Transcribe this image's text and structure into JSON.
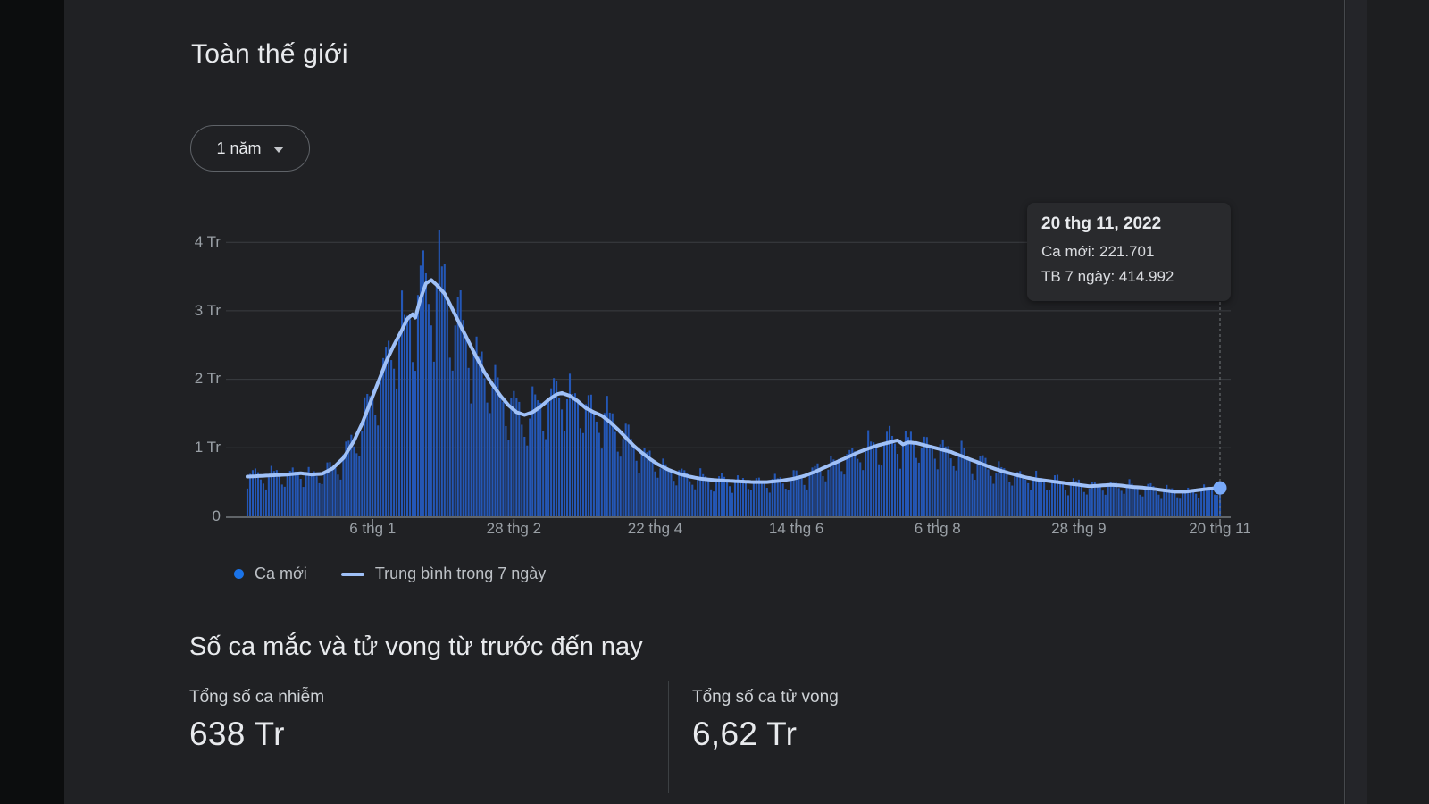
{
  "panel": {
    "title": "Toàn thế giới",
    "range_chip": {
      "label": "1 năm"
    },
    "tooltip": {
      "date": "20 thg 11, 2022",
      "rows": [
        "Ca mới: 221.701",
        "TB 7 ngày: 414.992"
      ]
    },
    "legend": {
      "bars_label": "Ca mới",
      "line_label": "Trung bình trong 7 ngày"
    },
    "section": {
      "heading": "Số ca mắc và tử vong từ trước đến nay",
      "stats": [
        {
          "label": "Tổng số ca nhiễm",
          "value": "638 Tr"
        },
        {
          "label": "Tổng số ca tử vong",
          "value": "6,62 Tr"
        }
      ]
    }
  },
  "chart_data": {
    "type": "bar+line",
    "description": "Daily new COVID-19 cases worldwide (bars) with 7-day average (line), 1-year window ending 20 Nov 2022. Values in Tr (millions).",
    "unit": "Tr",
    "y_axis": {
      "tick_labels": [
        "0",
        "1 Tr",
        "2 Tr",
        "3 Tr",
        "4 Tr"
      ],
      "min": 0,
      "max_gridline": 4,
      "grid": true
    },
    "x_axis": {
      "total_days": 365,
      "tick_days": [
        47,
        100,
        153,
        206,
        259,
        312,
        365
      ],
      "tick_labels": [
        "6 thg 1",
        "28 thg 2",
        "22 thg 4",
        "14 thg 6",
        "6 thg 8",
        "28 thg 9",
        "20 thg 11"
      ]
    },
    "series": [
      {
        "name": "Ca mới",
        "type": "bar",
        "color": "#2457b6",
        "model": {
          "weekly_pattern": [
            0.7,
            1.0,
            1.17,
            1.12,
            1.07,
            0.97,
            0.8
          ],
          "jitter": [
            [
              0.05,
              2.3
            ],
            [
              0.04,
              0.71
            ]
          ],
          "min_value": 0.05
        }
      },
      {
        "name": "Trung bình trong 7 ngày",
        "type": "line",
        "color": "#9fc0f7",
        "points": [
          [
            0,
            0.58
          ],
          [
            5,
            0.59
          ],
          [
            10,
            0.6
          ],
          [
            15,
            0.61
          ],
          [
            20,
            0.63
          ],
          [
            24,
            0.61
          ],
          [
            28,
            0.62
          ],
          [
            32,
            0.7
          ],
          [
            36,
            0.85
          ],
          [
            40,
            1.1
          ],
          [
            43,
            1.35
          ],
          [
            46,
            1.65
          ],
          [
            49,
            1.95
          ],
          [
            52,
            2.25
          ],
          [
            55,
            2.5
          ],
          [
            58,
            2.72
          ],
          [
            60,
            2.88
          ],
          [
            62,
            2.95
          ],
          [
            63,
            2.9
          ],
          [
            65,
            3.18
          ],
          [
            67,
            3.4
          ],
          [
            69,
            3.45
          ],
          [
            71,
            3.38
          ],
          [
            74,
            3.25
          ],
          [
            77,
            3.02
          ],
          [
            80,
            2.78
          ],
          [
            83,
            2.55
          ],
          [
            86,
            2.32
          ],
          [
            89,
            2.1
          ],
          [
            92,
            1.92
          ],
          [
            95,
            1.76
          ],
          [
            98,
            1.62
          ],
          [
            101,
            1.52
          ],
          [
            104,
            1.48
          ],
          [
            107,
            1.52
          ],
          [
            110,
            1.6
          ],
          [
            113,
            1.7
          ],
          [
            116,
            1.78
          ],
          [
            118,
            1.8
          ],
          [
            121,
            1.76
          ],
          [
            124,
            1.68
          ],
          [
            127,
            1.58
          ],
          [
            130,
            1.52
          ],
          [
            133,
            1.47
          ],
          [
            136,
            1.38
          ],
          [
            139,
            1.27
          ],
          [
            142,
            1.15
          ],
          [
            145,
            1.03
          ],
          [
            148,
            0.93
          ],
          [
            151,
            0.84
          ],
          [
            154,
            0.76
          ],
          [
            158,
            0.68
          ],
          [
            162,
            0.62
          ],
          [
            166,
            0.58
          ],
          [
            170,
            0.55
          ],
          [
            175,
            0.53
          ],
          [
            180,
            0.52
          ],
          [
            185,
            0.51
          ],
          [
            190,
            0.5
          ],
          [
            195,
            0.5
          ],
          [
            200,
            0.52
          ],
          [
            205,
            0.55
          ],
          [
            209,
            0.59
          ],
          [
            213,
            0.65
          ],
          [
            217,
            0.72
          ],
          [
            221,
            0.79
          ],
          [
            225,
            0.86
          ],
          [
            229,
            0.93
          ],
          [
            233,
            0.99
          ],
          [
            237,
            1.04
          ],
          [
            241,
            1.08
          ],
          [
            244,
            1.11
          ],
          [
            246,
            1.05
          ],
          [
            248,
            1.08
          ],
          [
            251,
            1.07
          ],
          [
            254,
            1.04
          ],
          [
            257,
            1.01
          ],
          [
            260,
            0.98
          ],
          [
            264,
            0.94
          ],
          [
            268,
            0.88
          ],
          [
            272,
            0.82
          ],
          [
            276,
            0.76
          ],
          [
            280,
            0.7
          ],
          [
            284,
            0.65
          ],
          [
            288,
            0.61
          ],
          [
            292,
            0.57
          ],
          [
            296,
            0.54
          ],
          [
            300,
            0.52
          ],
          [
            304,
            0.5
          ],
          [
            308,
            0.48
          ],
          [
            312,
            0.46
          ],
          [
            316,
            0.44
          ],
          [
            320,
            0.45
          ],
          [
            324,
            0.46
          ],
          [
            328,
            0.45
          ],
          [
            332,
            0.43
          ],
          [
            336,
            0.42
          ],
          [
            340,
            0.4
          ],
          [
            344,
            0.38
          ],
          [
            348,
            0.36
          ],
          [
            352,
            0.36
          ],
          [
            356,
            0.38
          ],
          [
            360,
            0.4
          ],
          [
            365,
            0.415
          ]
        ]
      }
    ],
    "end_marker": {
      "day": 365,
      "value": 0.415,
      "color": "#78a9f9"
    },
    "cursor": {
      "day": 365,
      "style": "dashed"
    },
    "style": {
      "grid_color": "#3a3d41",
      "axis_color": "#606468",
      "tick_color": "#80868b",
      "cursor_color": "#75797d"
    },
    "totals": {
      "cases": "638 Tr",
      "deaths": "6,62 Tr"
    }
  }
}
